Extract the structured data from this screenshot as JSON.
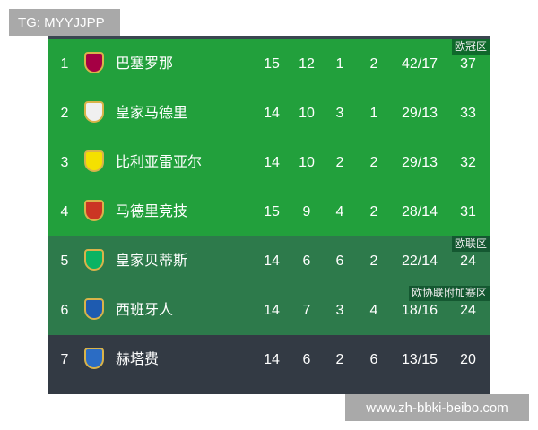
{
  "watermarks": {
    "top_left": "TG: MYYJJPP",
    "bottom_right": "www.zh-bbki-beibo.com"
  },
  "colors": {
    "ucl": "#22a03c",
    "uel": "#2d7a4b",
    "normal": "#333a44"
  },
  "rows": [
    {
      "rank": "1",
      "team": "巴塞罗那",
      "played": "15",
      "won": "12",
      "drawn": "1",
      "lost": "2",
      "goals": "42/17",
      "points": "37",
      "zone": "欧冠区",
      "logo": "barcelona-crest-icon",
      "logo_color": "#a50044",
      "bg": "#22a03c"
    },
    {
      "rank": "2",
      "team": "皇家马德里",
      "played": "14",
      "won": "10",
      "drawn": "3",
      "lost": "1",
      "goals": "29/13",
      "points": "33",
      "zone": "",
      "logo": "real-madrid-crest-icon",
      "logo_color": "#f0f0f0",
      "bg": "#22a03c"
    },
    {
      "rank": "3",
      "team": "比利亚雷亚尔",
      "played": "14",
      "won": "10",
      "drawn": "2",
      "lost": "2",
      "goals": "29/13",
      "points": "32",
      "zone": "",
      "logo": "villarreal-crest-icon",
      "logo_color": "#f5e000",
      "bg": "#22a03c"
    },
    {
      "rank": "4",
      "team": "马德里竞技",
      "played": "15",
      "won": "9",
      "drawn": "4",
      "lost": "2",
      "goals": "28/14",
      "points": "31",
      "zone": "",
      "logo": "atletico-crest-icon",
      "logo_color": "#cb3524",
      "bg": "#22a03c"
    },
    {
      "rank": "5",
      "team": "皇家贝蒂斯",
      "played": "14",
      "won": "6",
      "drawn": "6",
      "lost": "2",
      "goals": "22/14",
      "points": "24",
      "zone": "欧联区",
      "logo": "betis-crest-icon",
      "logo_color": "#0bb363",
      "bg": "#2d7a4b"
    },
    {
      "rank": "6",
      "team": "西班牙人",
      "played": "14",
      "won": "7",
      "drawn": "3",
      "lost": "4",
      "goals": "18/16",
      "points": "24",
      "zone": "欧协联附加赛区",
      "logo": "espanyol-crest-icon",
      "logo_color": "#1e5bb0",
      "bg": "#2d7a4b"
    },
    {
      "rank": "7",
      "team": "赫塔费",
      "played": "14",
      "won": "6",
      "drawn": "2",
      "lost": "6",
      "goals": "13/15",
      "points": "20",
      "zone": "",
      "logo": "getafe-crest-icon",
      "logo_color": "#2b6cc4",
      "bg": "#333a44"
    }
  ]
}
